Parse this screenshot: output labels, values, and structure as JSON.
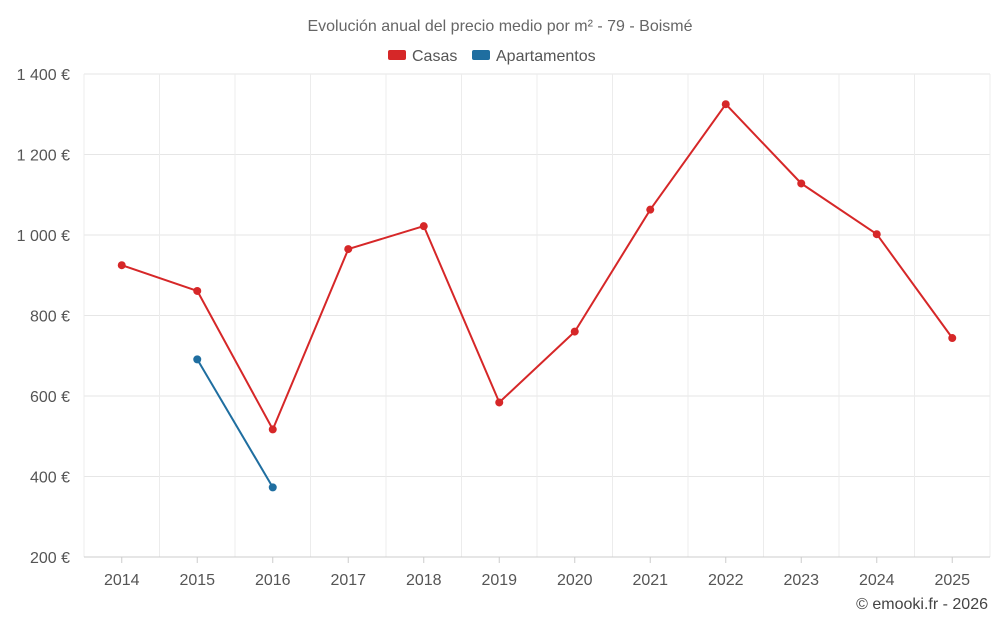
{
  "chart_data": {
    "type": "line",
    "title": "Evolución anual del precio medio por m² - 79 - Boismé",
    "xlabel": "",
    "ylabel": "",
    "categories": [
      "2014",
      "2015",
      "2016",
      "2017",
      "2018",
      "2019",
      "2020",
      "2021",
      "2022",
      "2023",
      "2024",
      "2025"
    ],
    "series": [
      {
        "name": "Casas",
        "color": "#d62728",
        "values": [
          925,
          861,
          517,
          965,
          1022,
          584,
          760,
          1063,
          1325,
          1128,
          1002,
          744
        ]
      },
      {
        "name": "Apartamentos",
        "color": "#1f6ea0",
        "values": [
          null,
          691,
          373,
          null,
          null,
          null,
          null,
          null,
          null,
          null,
          null,
          null
        ]
      }
    ],
    "ylim": [
      200,
      1400
    ],
    "yticks": [
      200,
      400,
      600,
      800,
      1000,
      1200,
      1400
    ],
    "ytick_labels": [
      "200 €",
      "400 €",
      "600 €",
      "800 €",
      "1 000 €",
      "1 200 €",
      "1 400 €"
    ],
    "grid": true,
    "legend": "top-center",
    "credit": "© emooki.fr - 2026"
  }
}
